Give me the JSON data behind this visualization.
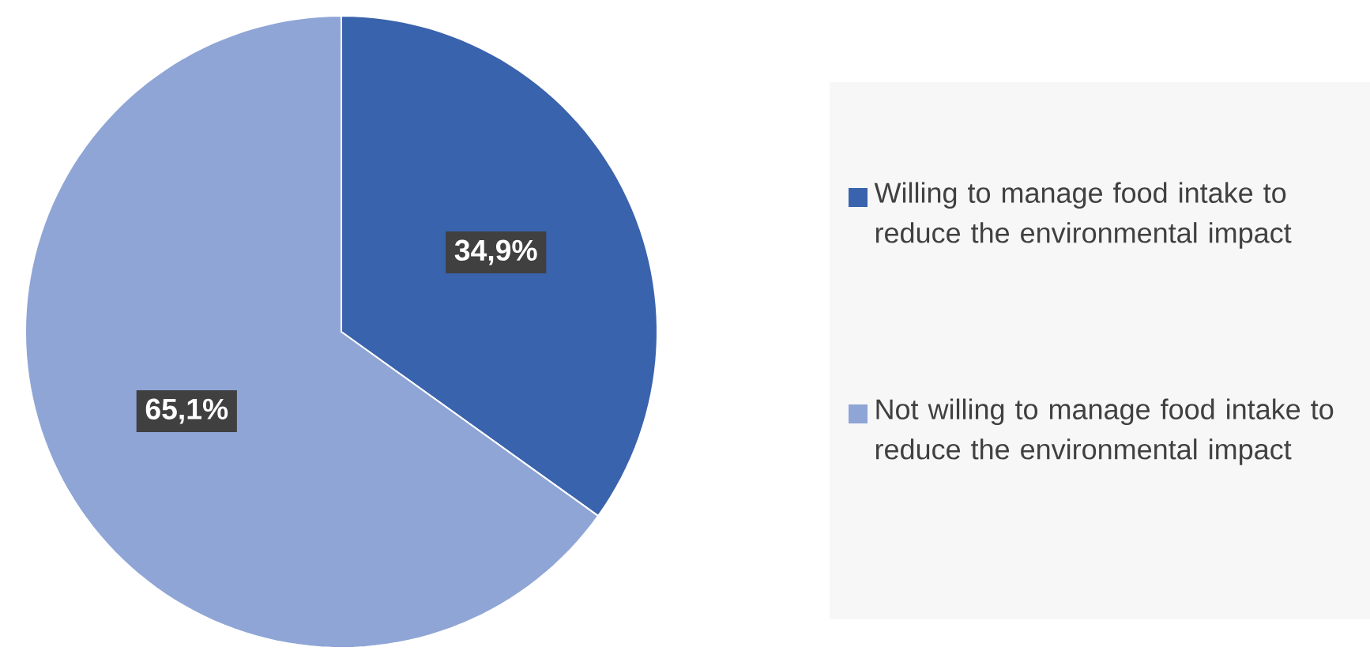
{
  "chart_data": {
    "type": "pie",
    "categories": [
      "Willing to manage food intake to reduce the environmental impact",
      "Not willing to manage food intake to reduce the environmental impact"
    ],
    "values": [
      34.9,
      65.1
    ],
    "colors": [
      "#3a63ad",
      "#8fa5d6"
    ],
    "value_labels": [
      "34,9%",
      "65,1%"
    ],
    "legend": "right"
  }
}
